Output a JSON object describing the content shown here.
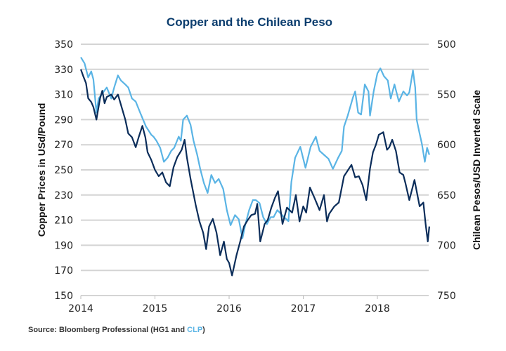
{
  "chart_data": {
    "type": "line",
    "title": "Copper and the Chilean Peso",
    "xlabel": "",
    "ylabel": "Copper Prices in USd/Pound",
    "y2label": "Chilean Pesos/USD Inverted Scale",
    "xlim": [
      2014.0,
      2018.7
    ],
    "ylim": [
      150,
      350
    ],
    "y2lim": [
      750,
      500
    ],
    "y2_inverted": true,
    "grid": true,
    "x_ticks": [
      "2014",
      "2015",
      "2016",
      "2017",
      "2018"
    ],
    "x_tick_values": [
      2014,
      2015,
      2016,
      2017,
      2018
    ],
    "y_ticks": [
      "350",
      "330",
      "310",
      "290",
      "270",
      "250",
      "230",
      "210",
      "190",
      "170",
      "150"
    ],
    "y2_ticks": [
      "500",
      "550",
      "600",
      "650",
      "700",
      "750"
    ],
    "series": [
      {
        "name": "HG1",
        "axis": "left",
        "color": "#0b2d5a",
        "x": [
          2014.0,
          2014.03,
          2014.07,
          2014.1,
          2014.14,
          2014.17,
          2014.21,
          2014.26,
          2014.29,
          2014.32,
          2014.35,
          2014.41,
          2014.45,
          2014.5,
          2014.54,
          2014.6,
          2014.64,
          2014.69,
          2014.74,
          2014.78,
          2014.83,
          2014.87,
          2014.9,
          2014.95,
          2015.0,
          2015.05,
          2015.1,
          2015.15,
          2015.2,
          2015.25,
          2015.3,
          2015.36,
          2015.4,
          2015.43,
          2015.48,
          2015.55,
          2015.6,
          2015.65,
          2015.69,
          2015.73,
          2015.78,
          2015.83,
          2015.88,
          2015.93,
          2015.97,
          2016.0,
          2016.04,
          2016.1,
          2016.15,
          2016.2,
          2016.25,
          2016.3,
          2016.35,
          2016.38,
          2016.42,
          2016.48,
          2016.52,
          2016.57,
          2016.62,
          2016.66,
          2016.72,
          2016.78,
          2016.85,
          2016.9,
          2016.95,
          2017.0,
          2017.04,
          2017.09,
          2017.15,
          2017.22,
          2017.28,
          2017.32,
          2017.35,
          2017.42,
          2017.48,
          2017.55,
          2017.65,
          2017.7,
          2017.75,
          2017.8,
          2017.85,
          2017.9,
          2017.94,
          2017.98,
          2018.02,
          2018.08,
          2018.13,
          2018.16,
          2018.2,
          2018.25,
          2018.3,
          2018.35,
          2018.38,
          2018.43,
          2018.5,
          2018.57,
          2018.62,
          2018.65,
          2018.68,
          2018.7
        ],
        "y": [
          330,
          325,
          319,
          307,
          304,
          300,
          290,
          307,
          313,
          303,
          308,
          310,
          306,
          310,
          302,
          290,
          279,
          276,
          268,
          276,
          285,
          276,
          264,
          258,
          250,
          245,
          248,
          240,
          237,
          252,
          260,
          266,
          274,
          260,
          243,
          222,
          209,
          200,
          187,
          205,
          211,
          200,
          182,
          193,
          179,
          176,
          166,
          182,
          193,
          205,
          210,
          214,
          215,
          223,
          193,
          207,
          210,
          220,
          228,
          233,
          207,
          220,
          216,
          230,
          209,
          221,
          216,
          236,
          228,
          218,
          230,
          209,
          215,
          221,
          224,
          245,
          254,
          244,
          245,
          238,
          226,
          251,
          264,
          270,
          278,
          280,
          266,
          268,
          274,
          265,
          248,
          246,
          239,
          226,
          242,
          221,
          224,
          207,
          193,
          205
        ]
      },
      {
        "name": "CLP",
        "axis": "right",
        "color": "#5ab4e5",
        "x": [
          2014.0,
          2014.05,
          2014.1,
          2014.14,
          2014.17,
          2014.21,
          2014.24,
          2014.31,
          2014.35,
          2014.41,
          2014.45,
          2014.5,
          2014.54,
          2014.6,
          2014.64,
          2014.69,
          2014.74,
          2014.8,
          2014.88,
          2014.95,
          2014.98,
          2015.02,
          2015.07,
          2015.12,
          2015.17,
          2015.22,
          2015.26,
          2015.32,
          2015.35,
          2015.38,
          2015.43,
          2015.48,
          2015.52,
          2015.57,
          2015.61,
          2015.66,
          2015.71,
          2015.76,
          2015.81,
          2015.86,
          2015.92,
          2015.97,
          2016.02,
          2016.08,
          2016.13,
          2016.18,
          2016.22,
          2016.27,
          2016.32,
          2016.36,
          2016.41,
          2016.46,
          2016.51,
          2016.56,
          2016.6,
          2016.65,
          2016.74,
          2016.8,
          2016.84,
          2016.89,
          2016.96,
          2017.03,
          2017.1,
          2017.17,
          2017.22,
          2017.28,
          2017.34,
          2017.4,
          2017.47,
          2017.52,
          2017.55,
          2017.6,
          2017.67,
          2017.7,
          2017.74,
          2017.78,
          2017.83,
          2017.88,
          2017.9,
          2017.95,
          2018.0,
          2018.04,
          2018.09,
          2018.14,
          2018.18,
          2018.23,
          2018.29,
          2018.35,
          2018.4,
          2018.43,
          2018.48,
          2018.51,
          2018.53,
          2018.57,
          2018.6,
          2018.64,
          2018.67,
          2018.7
        ],
        "y": [
          513,
          519,
          533,
          527,
          535,
          568,
          554,
          547,
          543,
          554,
          543,
          531,
          536,
          540,
          543,
          554,
          557,
          568,
          582,
          590,
          592,
          596,
          603,
          617,
          613,
          606,
          603,
          592,
          596,
          575,
          571,
          580,
          596,
          610,
          624,
          638,
          648,
          630,
          638,
          634,
          644,
          665,
          680,
          670,
          674,
          693,
          679,
          665,
          655,
          655,
          658,
          672,
          679,
          672,
          672,
          665,
          672,
          676,
          637,
          613,
          602,
          623,
          602,
          592,
          606,
          610,
          614,
          624,
          613,
          606,
          582,
          571,
          553,
          547,
          568,
          570,
          540,
          547,
          571,
          547,
          529,
          524,
          532,
          536,
          554,
          540,
          557,
          547,
          551,
          548,
          526,
          543,
          575,
          589,
          599,
          617,
          603,
          610
        ]
      }
    ]
  },
  "source": {
    "prefix": "Source: Bloomberg Professional (HG1 and ",
    "highlight": "CLP",
    "suffix": ")"
  }
}
